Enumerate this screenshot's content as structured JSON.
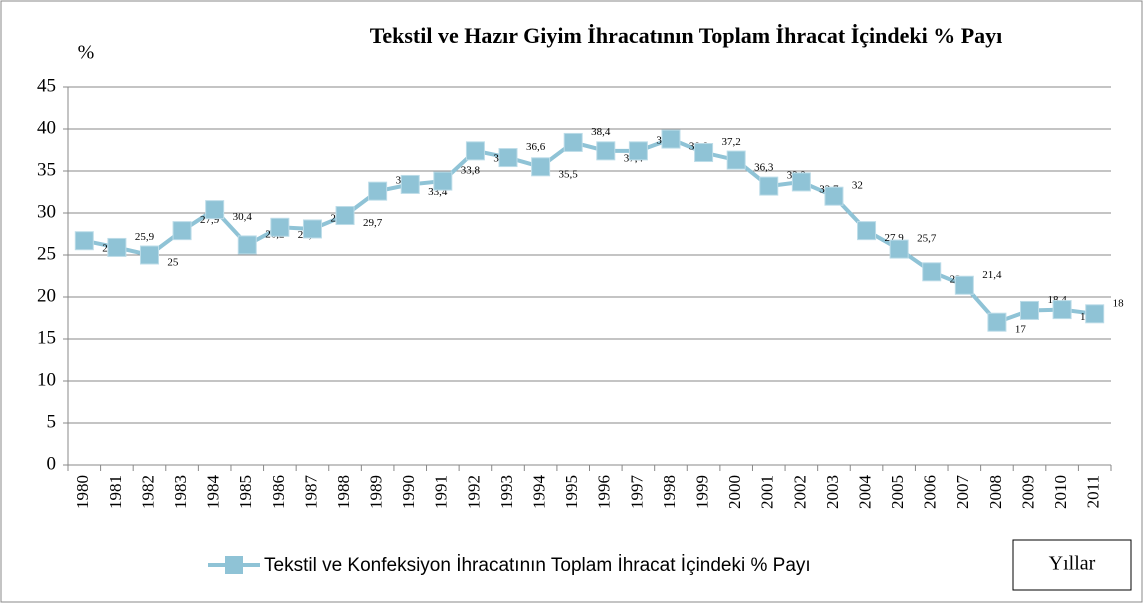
{
  "chart_data": {
    "type": "line",
    "title": "Tekstil ve Hazır Giyim İhracatının Toplam İhracat İçindeki % Payı",
    "y_label": "%",
    "x_label": "Yıllar",
    "categories": [
      "1980",
      "1981",
      "1982",
      "1983",
      "1984",
      "1985",
      "1986",
      "1987",
      "1988",
      "1989",
      "1990",
      "1991",
      "1992",
      "1993",
      "1994",
      "1995",
      "1996",
      "1997",
      "1998",
      "1999",
      "2000",
      "2001",
      "2002",
      "2003",
      "2004",
      "2005",
      "2006",
      "2007",
      "2008",
      "2009",
      "2010",
      "2011"
    ],
    "series": [
      {
        "name": "Tekstil ve Konfeksiyon İhracatının Toplam İhracat İçindeki % Payı",
        "color": "#8fc3d6",
        "values": [
          26.7,
          25.9,
          25,
          27.9,
          30.4,
          26.2,
          28.3,
          28.1,
          29.7,
          32.6,
          33.4,
          33.8,
          37.4,
          36.6,
          35.5,
          38.4,
          37.4,
          37.4,
          38.8,
          37.2,
          36.3,
          33.2,
          33.7,
          32,
          27.9,
          25.7,
          23,
          21.4,
          17,
          18.4,
          18.5,
          18
        ],
        "value_labels": [
          "26,7",
          "25,9",
          "25",
          "27,9",
          "30,4",
          "26,2",
          "28,3",
          "28,1",
          "29,7",
          "32,6",
          "33,4",
          "33,8",
          "37,4",
          "36,6",
          "35,5",
          "38,4",
          "37,4",
          "37,4",
          "38,8",
          "37,2",
          "36,3",
          "33,2",
          "33,7",
          "32",
          "27,9",
          "25,7",
          "23",
          "21,4",
          "17",
          "18,4",
          "18,5",
          "18"
        ]
      }
    ],
    "ylim": [
      0,
      45
    ],
    "yticks": [
      0,
      5,
      10,
      15,
      20,
      25,
      30,
      35,
      40,
      45
    ],
    "grid": true,
    "legend": "bottom"
  }
}
